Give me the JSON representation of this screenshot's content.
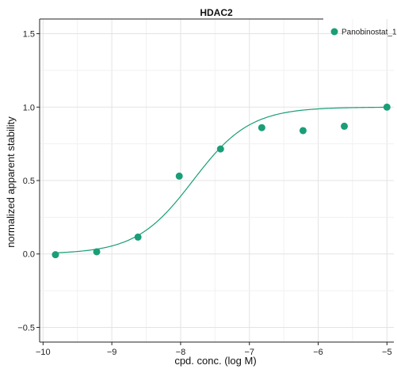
{
  "chart_data": {
    "type": "scatter",
    "title": "HDAC2",
    "xlabel": "cpd. conc. (log M)",
    "ylabel": "normalized apparent stability",
    "xlim": [
      -10.05,
      -4.9
    ],
    "ylim": [
      -0.6,
      1.6
    ],
    "xticks": [
      -10,
      -9,
      -8,
      -7,
      -6,
      -5
    ],
    "yticks": [
      -0.5,
      0.0,
      0.5,
      1.0,
      1.5
    ],
    "xtick_labels": [
      "−10",
      "−9",
      "−8",
      "−7",
      "−6",
      "−5"
    ],
    "ytick_labels": [
      "−0.5",
      "0.0",
      "0.5",
      "1.0",
      "1.5"
    ],
    "grid": true,
    "legend_position": "top-right",
    "series": [
      {
        "name": "Panobinostat_1",
        "color": "#1a9e77",
        "x": [
          -9.82,
          -9.22,
          -8.62,
          -8.02,
          -7.42,
          -6.82,
          -6.22,
          -5.62,
          -5.0
        ],
        "y": [
          -0.005,
          0.015,
          0.115,
          0.53,
          0.715,
          0.86,
          0.84,
          0.87,
          1.0
        ],
        "fit": {
          "type": "sigmoid",
          "bottom": 0.0,
          "top": 1.0,
          "ec50_log": -7.82,
          "hill": 1.05
        }
      }
    ]
  }
}
